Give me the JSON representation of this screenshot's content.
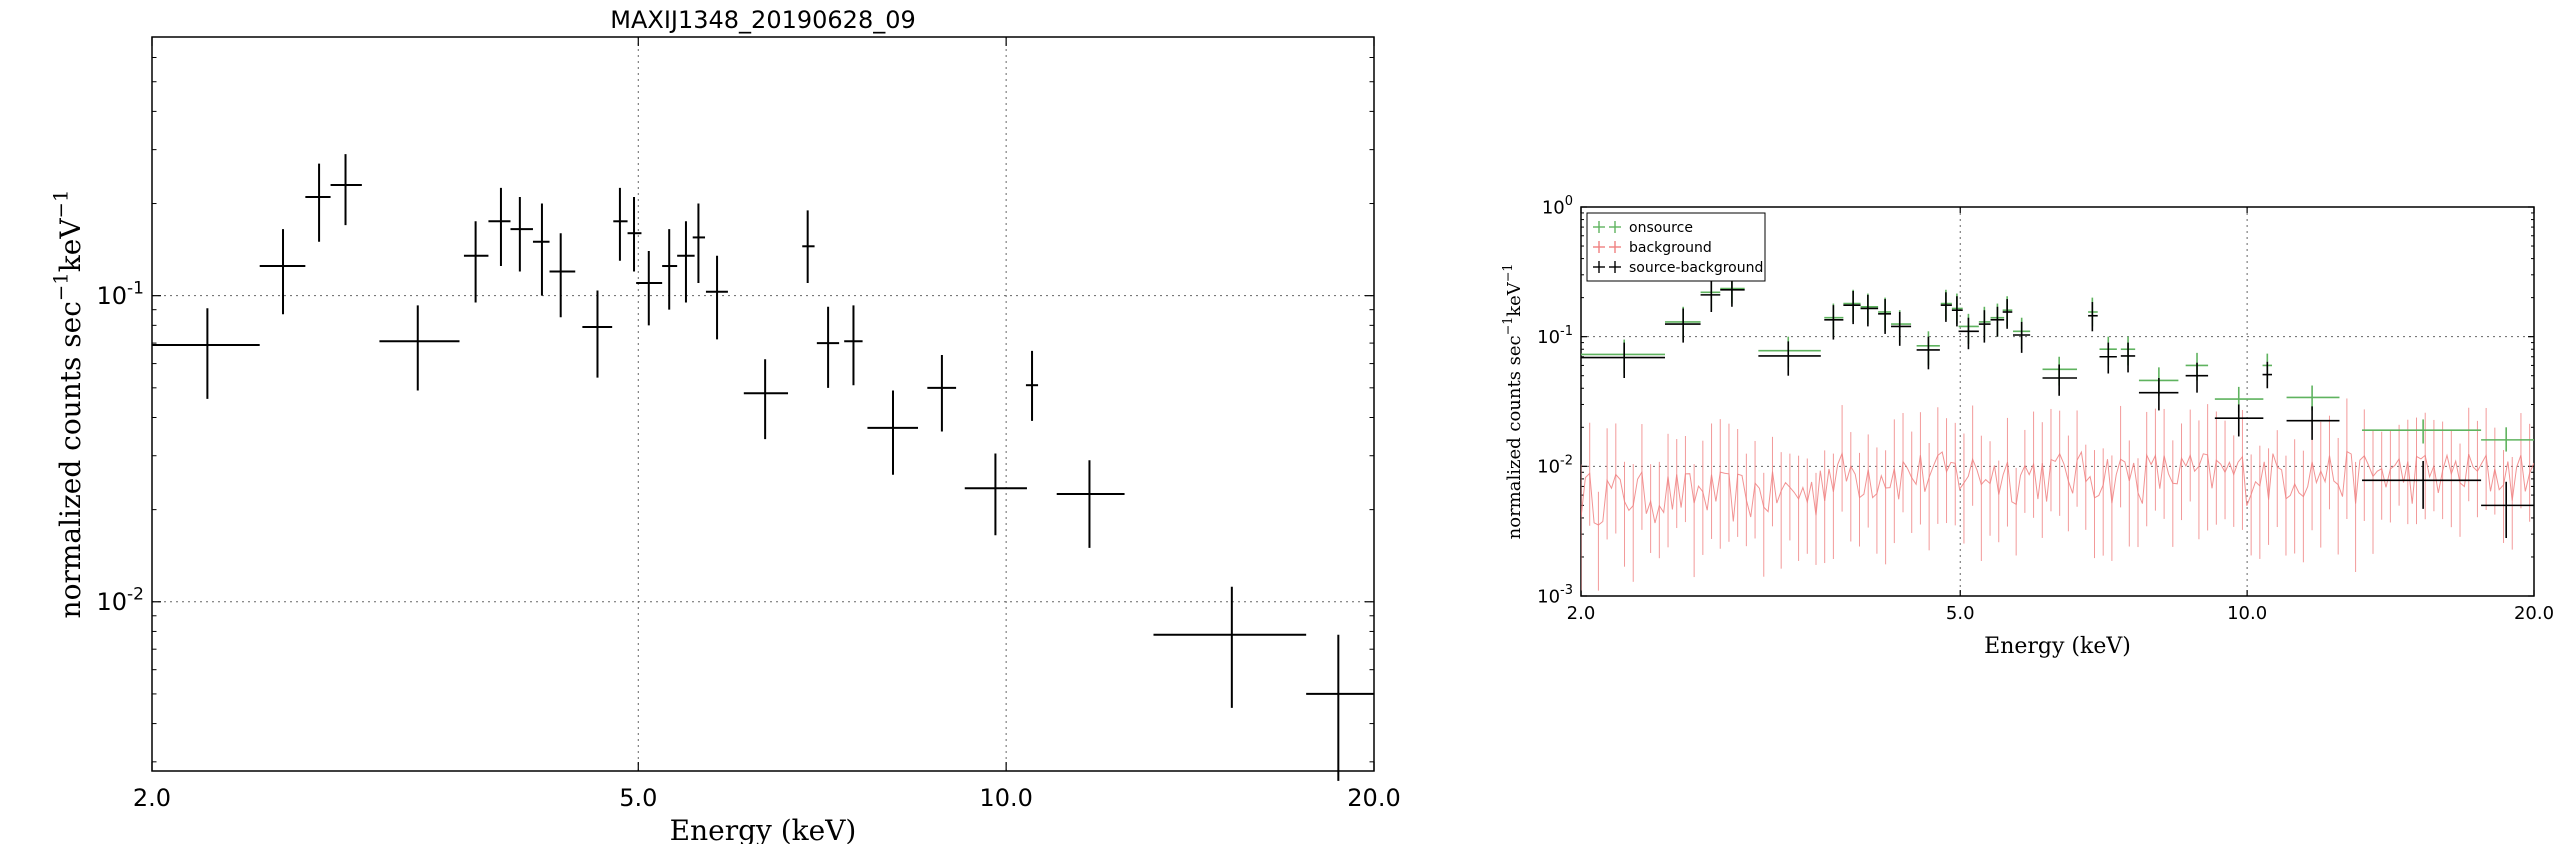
{
  "chart_data": [
    {
      "type": "scatter",
      "style": "errorbar",
      "title": "MAXIJ1348_20190628_09",
      "xlabel": "Energy (keV)",
      "ylabel_base": "normalized counts sec",
      "ylabel_mid": "keV",
      "ylabel_exp": "−1",
      "xscale": "log",
      "yscale": "log",
      "xlim": [
        2.0,
        20.0
      ],
      "ylim": [
        0.0028,
        0.7
      ],
      "xticks": [
        2.0,
        5.0,
        10.0,
        20.0
      ],
      "xtick_labels": [
        "2.0",
        "5.0",
        "10.0",
        "20.0"
      ],
      "yticks": [
        0.01,
        0.1
      ],
      "ytick_labels": [
        {
          "base": "10",
          "exp": "-2"
        },
        {
          "base": "10",
          "exp": "-1"
        }
      ],
      "grid": true,
      "colors": {
        "data": "#000000",
        "grid": "#555555"
      },
      "series": [
        {
          "points": [
            {
              "x": 2.22,
              "xlo": 2.0,
              "xhi": 2.45,
              "y": 0.069,
              "ylo": 0.046,
              "yhi": 0.091
            },
            {
              "x": 2.56,
              "xlo": 2.45,
              "xhi": 2.67,
              "y": 0.125,
              "ylo": 0.087,
              "yhi": 0.165
            },
            {
              "x": 2.74,
              "xlo": 2.67,
              "xhi": 2.8,
              "y": 0.21,
              "ylo": 0.15,
              "yhi": 0.27
            },
            {
              "x": 2.88,
              "xlo": 2.8,
              "xhi": 2.97,
              "y": 0.23,
              "ylo": 0.17,
              "yhi": 0.29
            },
            {
              "x": 3.3,
              "xlo": 3.07,
              "xhi": 3.57,
              "y": 0.071,
              "ylo": 0.049,
              "yhi": 0.093
            },
            {
              "x": 3.68,
              "xlo": 3.6,
              "xhi": 3.77,
              "y": 0.135,
              "ylo": 0.095,
              "yhi": 0.175
            },
            {
              "x": 3.86,
              "xlo": 3.77,
              "xhi": 3.93,
              "y": 0.175,
              "ylo": 0.125,
              "yhi": 0.225
            },
            {
              "x": 4.0,
              "xlo": 3.93,
              "xhi": 4.1,
              "y": 0.165,
              "ylo": 0.12,
              "yhi": 0.21
            },
            {
              "x": 4.17,
              "xlo": 4.1,
              "xhi": 4.23,
              "y": 0.15,
              "ylo": 0.1,
              "yhi": 0.2
            },
            {
              "x": 4.32,
              "xlo": 4.23,
              "xhi": 4.44,
              "y": 0.12,
              "ylo": 0.085,
              "yhi": 0.16
            },
            {
              "x": 4.63,
              "xlo": 4.5,
              "xhi": 4.76,
              "y": 0.079,
              "ylo": 0.054,
              "yhi": 0.104
            },
            {
              "x": 4.83,
              "xlo": 4.77,
              "xhi": 4.9,
              "y": 0.175,
              "ylo": 0.13,
              "yhi": 0.225
            },
            {
              "x": 4.96,
              "xlo": 4.9,
              "xhi": 5.03,
              "y": 0.16,
              "ylo": 0.12,
              "yhi": 0.21
            },
            {
              "x": 5.1,
              "xlo": 4.98,
              "xhi": 5.23,
              "y": 0.11,
              "ylo": 0.08,
              "yhi": 0.14
            },
            {
              "x": 5.3,
              "xlo": 5.23,
              "xhi": 5.38,
              "y": 0.125,
              "ylo": 0.09,
              "yhi": 0.165
            },
            {
              "x": 5.47,
              "xlo": 5.38,
              "xhi": 5.56,
              "y": 0.135,
              "ylo": 0.095,
              "yhi": 0.175
            },
            {
              "x": 5.6,
              "xlo": 5.54,
              "xhi": 5.67,
              "y": 0.155,
              "ylo": 0.11,
              "yhi": 0.2
            },
            {
              "x": 5.8,
              "xlo": 5.68,
              "xhi": 5.92,
              "y": 0.103,
              "ylo": 0.072,
              "yhi": 0.135
            },
            {
              "x": 6.35,
              "xlo": 6.1,
              "xhi": 6.63,
              "y": 0.048,
              "ylo": 0.034,
              "yhi": 0.062
            },
            {
              "x": 6.88,
              "xlo": 6.81,
              "xhi": 6.97,
              "y": 0.145,
              "ylo": 0.11,
              "yhi": 0.19
            },
            {
              "x": 7.15,
              "xlo": 7.0,
              "xhi": 7.3,
              "y": 0.07,
              "ylo": 0.05,
              "yhi": 0.092
            },
            {
              "x": 7.5,
              "xlo": 7.37,
              "xhi": 7.63,
              "y": 0.071,
              "ylo": 0.051,
              "yhi": 0.093
            },
            {
              "x": 8.08,
              "xlo": 7.7,
              "xhi": 8.47,
              "y": 0.037,
              "ylo": 0.026,
              "yhi": 0.049
            },
            {
              "x": 8.86,
              "xlo": 8.62,
              "xhi": 9.1,
              "y": 0.05,
              "ylo": 0.036,
              "yhi": 0.064
            },
            {
              "x": 9.8,
              "xlo": 9.25,
              "xhi": 10.4,
              "y": 0.0235,
              "ylo": 0.0165,
              "yhi": 0.0305
            },
            {
              "x": 10.5,
              "xlo": 10.38,
              "xhi": 10.62,
              "y": 0.051,
              "ylo": 0.039,
              "yhi": 0.066
            },
            {
              "x": 11.7,
              "xlo": 11.0,
              "xhi": 12.5,
              "y": 0.0225,
              "ylo": 0.015,
              "yhi": 0.029
            },
            {
              "x": 15.3,
              "xlo": 13.2,
              "xhi": 17.6,
              "y": 0.0078,
              "ylo": 0.0045,
              "yhi": 0.0112
            },
            {
              "x": 18.7,
              "xlo": 17.6,
              "xhi": 20.0,
              "y": 0.005,
              "ylo": 0.0026,
              "yhi": 0.0078
            }
          ]
        }
      ]
    },
    {
      "type": "scatter",
      "style": "errorbar",
      "title": "",
      "xlabel": "Energy (keV)",
      "ylabel_base": "normalized counts sec",
      "ylabel_mid": "keV",
      "ylabel_exp": "−1",
      "xscale": "log",
      "yscale": "log",
      "xlim": [
        2.0,
        20.0
      ],
      "ylim": [
        0.001,
        1.0
      ],
      "xticks": [
        2.0,
        5.0,
        10.0,
        20.0
      ],
      "xtick_labels": [
        "2.0",
        "5.0",
        "10.0",
        "20.0"
      ],
      "yticks": [
        0.001,
        0.01,
        0.1,
        1.0
      ],
      "ytick_labels": [
        {
          "base": "10",
          "exp": "-3"
        },
        {
          "base": "10",
          "exp": "-2"
        },
        {
          "base": "10",
          "exp": "-1"
        },
        {
          "base": "10",
          "exp": "0"
        }
      ],
      "grid": true,
      "legend_position": "top-left",
      "series": [
        {
          "name": "onsource",
          "color": "#5fb35f",
          "points": [
            {
              "x": 2.22,
              "xlo": 2.0,
              "xhi": 2.45,
              "y": 0.073,
              "ylo": 0.052,
              "yhi": 0.095
            },
            {
              "x": 2.56,
              "xlo": 2.45,
              "xhi": 2.67,
              "y": 0.13,
              "ylo": 0.095,
              "yhi": 0.17
            },
            {
              "x": 2.74,
              "xlo": 2.67,
              "xhi": 2.8,
              "y": 0.22,
              "ylo": 0.16,
              "yhi": 0.28
            },
            {
              "x": 2.88,
              "xlo": 2.8,
              "xhi": 2.97,
              "y": 0.235,
              "ylo": 0.18,
              "yhi": 0.3
            },
            {
              "x": 3.3,
              "xlo": 3.07,
              "xhi": 3.57,
              "y": 0.078,
              "ylo": 0.058,
              "yhi": 0.1
            },
            {
              "x": 3.68,
              "xlo": 3.6,
              "xhi": 3.77,
              "y": 0.14,
              "ylo": 0.1,
              "yhi": 0.18
            },
            {
              "x": 3.86,
              "xlo": 3.77,
              "xhi": 3.93,
              "y": 0.18,
              "ylo": 0.13,
              "yhi": 0.23
            },
            {
              "x": 4.0,
              "xlo": 3.93,
              "xhi": 4.1,
              "y": 0.17,
              "ylo": 0.125,
              "yhi": 0.215
            },
            {
              "x": 4.17,
              "xlo": 4.1,
              "xhi": 4.23,
              "y": 0.155,
              "ylo": 0.11,
              "yhi": 0.2
            },
            {
              "x": 4.32,
              "xlo": 4.23,
              "xhi": 4.44,
              "y": 0.125,
              "ylo": 0.09,
              "yhi": 0.16
            },
            {
              "x": 4.63,
              "xlo": 4.5,
              "xhi": 4.76,
              "y": 0.085,
              "ylo": 0.06,
              "yhi": 0.11
            },
            {
              "x": 4.83,
              "xlo": 4.77,
              "xhi": 4.9,
              "y": 0.18,
              "ylo": 0.135,
              "yhi": 0.23
            },
            {
              "x": 4.96,
              "xlo": 4.9,
              "xhi": 5.03,
              "y": 0.165,
              "ylo": 0.125,
              "yhi": 0.215
            },
            {
              "x": 5.1,
              "xlo": 4.98,
              "xhi": 5.23,
              "y": 0.12,
              "ylo": 0.088,
              "yhi": 0.15
            },
            {
              "x": 5.3,
              "xlo": 5.23,
              "xhi": 5.38,
              "y": 0.13,
              "ylo": 0.095,
              "yhi": 0.17
            },
            {
              "x": 5.47,
              "xlo": 5.38,
              "xhi": 5.56,
              "y": 0.14,
              "ylo": 0.1,
              "yhi": 0.18
            },
            {
              "x": 5.6,
              "xlo": 5.54,
              "xhi": 5.67,
              "y": 0.16,
              "ylo": 0.12,
              "yhi": 0.205
            },
            {
              "x": 5.8,
              "xlo": 5.68,
              "xhi": 5.92,
              "y": 0.11,
              "ylo": 0.08,
              "yhi": 0.14
            },
            {
              "x": 6.35,
              "xlo": 6.1,
              "xhi": 6.63,
              "y": 0.056,
              "ylo": 0.042,
              "yhi": 0.07
            },
            {
              "x": 6.88,
              "xlo": 6.81,
              "xhi": 6.97,
              "y": 0.155,
              "ylo": 0.12,
              "yhi": 0.2
            },
            {
              "x": 7.15,
              "xlo": 7.0,
              "xhi": 7.3,
              "y": 0.08,
              "ylo": 0.06,
              "yhi": 0.1
            },
            {
              "x": 7.5,
              "xlo": 7.37,
              "xhi": 7.63,
              "y": 0.08,
              "ylo": 0.06,
              "yhi": 0.1
            },
            {
              "x": 8.08,
              "xlo": 7.7,
              "xhi": 8.47,
              "y": 0.046,
              "ylo": 0.035,
              "yhi": 0.058
            },
            {
              "x": 8.86,
              "xlo": 8.62,
              "xhi": 9.1,
              "y": 0.06,
              "ylo": 0.046,
              "yhi": 0.075
            },
            {
              "x": 9.8,
              "xlo": 9.25,
              "xhi": 10.4,
              "y": 0.033,
              "ylo": 0.026,
              "yhi": 0.041
            },
            {
              "x": 10.5,
              "xlo": 10.38,
              "xhi": 10.62,
              "y": 0.06,
              "ylo": 0.047,
              "yhi": 0.074
            },
            {
              "x": 11.7,
              "xlo": 11.0,
              "xhi": 12.5,
              "y": 0.034,
              "ylo": 0.027,
              "yhi": 0.042
            },
            {
              "x": 15.3,
              "xlo": 13.2,
              "xhi": 17.6,
              "y": 0.019,
              "ylo": 0.015,
              "yhi": 0.023
            },
            {
              "x": 18.7,
              "xlo": 17.6,
              "xhi": 20.0,
              "y": 0.016,
              "ylo": 0.013,
              "yhi": 0.02
            }
          ]
        },
        {
          "name": "background",
          "color": "#f08080",
          "noisy_range": [
            2.0,
            20.0
          ],
          "approx_level": 0.009,
          "approx_bin_count": 220
        },
        {
          "name": "source-background",
          "color": "#000000",
          "points": [
            {
              "x": 2.22,
              "xlo": 2.0,
              "xhi": 2.45,
              "y": 0.069,
              "ylo": 0.048,
              "yhi": 0.09
            },
            {
              "x": 2.56,
              "xlo": 2.45,
              "xhi": 2.67,
              "y": 0.125,
              "ylo": 0.09,
              "yhi": 0.165
            },
            {
              "x": 2.74,
              "xlo": 2.67,
              "xhi": 2.8,
              "y": 0.21,
              "ylo": 0.155,
              "yhi": 0.27
            },
            {
              "x": 2.88,
              "xlo": 2.8,
              "xhi": 2.97,
              "y": 0.23,
              "ylo": 0.17,
              "yhi": 0.29
            },
            {
              "x": 3.3,
              "xlo": 3.07,
              "xhi": 3.57,
              "y": 0.071,
              "ylo": 0.05,
              "yhi": 0.092
            },
            {
              "x": 3.68,
              "xlo": 3.6,
              "xhi": 3.77,
              "y": 0.135,
              "ylo": 0.095,
              "yhi": 0.175
            },
            {
              "x": 3.86,
              "xlo": 3.77,
              "xhi": 3.93,
              "y": 0.175,
              "ylo": 0.125,
              "yhi": 0.225
            },
            {
              "x": 4.0,
              "xlo": 3.93,
              "xhi": 4.1,
              "y": 0.165,
              "ylo": 0.12,
              "yhi": 0.21
            },
            {
              "x": 4.17,
              "xlo": 4.1,
              "xhi": 4.23,
              "y": 0.15,
              "ylo": 0.105,
              "yhi": 0.195
            },
            {
              "x": 4.32,
              "xlo": 4.23,
              "xhi": 4.44,
              "y": 0.12,
              "ylo": 0.085,
              "yhi": 0.155
            },
            {
              "x": 4.63,
              "xlo": 4.5,
              "xhi": 4.76,
              "y": 0.079,
              "ylo": 0.056,
              "yhi": 0.1
            },
            {
              "x": 4.83,
              "xlo": 4.77,
              "xhi": 4.9,
              "y": 0.175,
              "ylo": 0.13,
              "yhi": 0.22
            },
            {
              "x": 4.96,
              "xlo": 4.9,
              "xhi": 5.03,
              "y": 0.16,
              "ylo": 0.12,
              "yhi": 0.205
            },
            {
              "x": 5.1,
              "xlo": 4.98,
              "xhi": 5.23,
              "y": 0.11,
              "ylo": 0.08,
              "yhi": 0.14
            },
            {
              "x": 5.3,
              "xlo": 5.23,
              "xhi": 5.38,
              "y": 0.125,
              "ylo": 0.09,
              "yhi": 0.16
            },
            {
              "x": 5.47,
              "xlo": 5.38,
              "xhi": 5.56,
              "y": 0.135,
              "ylo": 0.1,
              "yhi": 0.17
            },
            {
              "x": 5.6,
              "xlo": 5.54,
              "xhi": 5.67,
              "y": 0.155,
              "ylo": 0.115,
              "yhi": 0.195
            },
            {
              "x": 5.8,
              "xlo": 5.68,
              "xhi": 5.92,
              "y": 0.103,
              "ylo": 0.075,
              "yhi": 0.13
            },
            {
              "x": 6.35,
              "xlo": 6.1,
              "xhi": 6.63,
              "y": 0.048,
              "ylo": 0.035,
              "yhi": 0.061
            },
            {
              "x": 6.88,
              "xlo": 6.81,
              "xhi": 6.97,
              "y": 0.145,
              "ylo": 0.11,
              "yhi": 0.185
            },
            {
              "x": 7.15,
              "xlo": 7.0,
              "xhi": 7.3,
              "y": 0.07,
              "ylo": 0.052,
              "yhi": 0.09
            },
            {
              "x": 7.5,
              "xlo": 7.37,
              "xhi": 7.63,
              "y": 0.071,
              "ylo": 0.053,
              "yhi": 0.09
            },
            {
              "x": 8.08,
              "xlo": 7.7,
              "xhi": 8.47,
              "y": 0.037,
              "ylo": 0.027,
              "yhi": 0.048
            },
            {
              "x": 8.86,
              "xlo": 8.62,
              "xhi": 9.1,
              "y": 0.05,
              "ylo": 0.037,
              "yhi": 0.063
            },
            {
              "x": 9.8,
              "xlo": 9.25,
              "xhi": 10.4,
              "y": 0.0235,
              "ylo": 0.017,
              "yhi": 0.03
            },
            {
              "x": 10.5,
              "xlo": 10.38,
              "xhi": 10.62,
              "y": 0.051,
              "ylo": 0.04,
              "yhi": 0.064
            },
            {
              "x": 11.7,
              "xlo": 11.0,
              "xhi": 12.5,
              "y": 0.0225,
              "ylo": 0.016,
              "yhi": 0.029
            },
            {
              "x": 15.3,
              "xlo": 13.2,
              "xhi": 17.6,
              "y": 0.0078,
              "ylo": 0.0047,
              "yhi": 0.011
            },
            {
              "x": 18.7,
              "xlo": 17.6,
              "xhi": 20.0,
              "y": 0.005,
              "ylo": 0.0028,
              "yhi": 0.0076
            }
          ]
        }
      ]
    }
  ]
}
